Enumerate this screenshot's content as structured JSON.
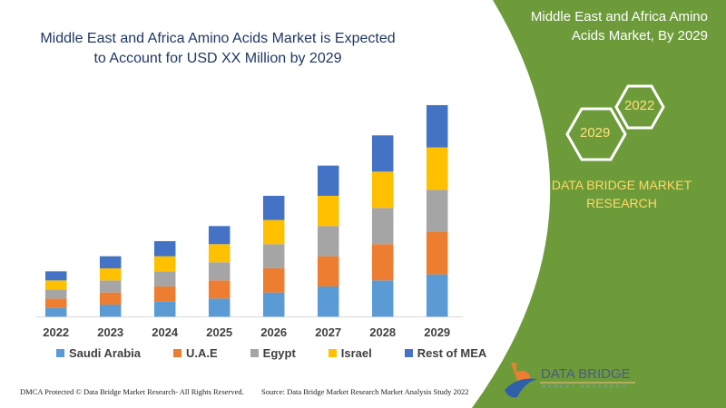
{
  "colors": {
    "panel": "#6d9b3a",
    "title": "#1f3864",
    "hex_text": "#ffe07a",
    "dbmr_text": "#ffd966"
  },
  "header": {
    "title": "Middle East and Africa Amino Acids Market is Expected to Account for USD XX Million by 2029"
  },
  "panel": {
    "title": "Middle East and Africa Amino Acids Market, By 2029",
    "hex_years": [
      "2022",
      "2029"
    ],
    "brand": "DATA BRIDGE MARKET RESEARCH"
  },
  "logo": {
    "name": "DATA BRIDGE",
    "tagline": "MARKET RESEARCH"
  },
  "footer": {
    "copyright": "DMCA Protected © Data Bridge Market Research- All Rights Reserved.",
    "source": "Source: Data Bridge Market Research Market Analysis Study 2022"
  },
  "chart_data": {
    "type": "bar",
    "stacked": true,
    "title": "",
    "xlabel": "",
    "ylabel": "",
    "grid": false,
    "legend_position": "bottom",
    "categories": [
      "2022",
      "2023",
      "2024",
      "2025",
      "2026",
      "2027",
      "2028",
      "2029"
    ],
    "series": [
      {
        "name": "Saudi Arabia",
        "color": "#5b9bd5",
        "values": [
          3,
          4,
          5,
          6,
          8,
          10,
          12,
          14
        ]
      },
      {
        "name": "U.A.E",
        "color": "#ed7d31",
        "values": [
          3,
          4,
          5,
          6,
          8,
          10,
          12,
          14
        ]
      },
      {
        "name": "Egypt",
        "color": "#a5a5a5",
        "values": [
          3,
          4,
          5,
          6,
          8,
          10,
          12,
          14
        ]
      },
      {
        "name": "Israel",
        "color": "#ffc000",
        "values": [
          3,
          4,
          5,
          6,
          8,
          10,
          12,
          14
        ]
      },
      {
        "name": "Rest of MEA",
        "color": "#4472c4",
        "values": [
          3,
          4,
          5,
          6,
          8,
          10,
          12,
          14
        ]
      }
    ]
  }
}
